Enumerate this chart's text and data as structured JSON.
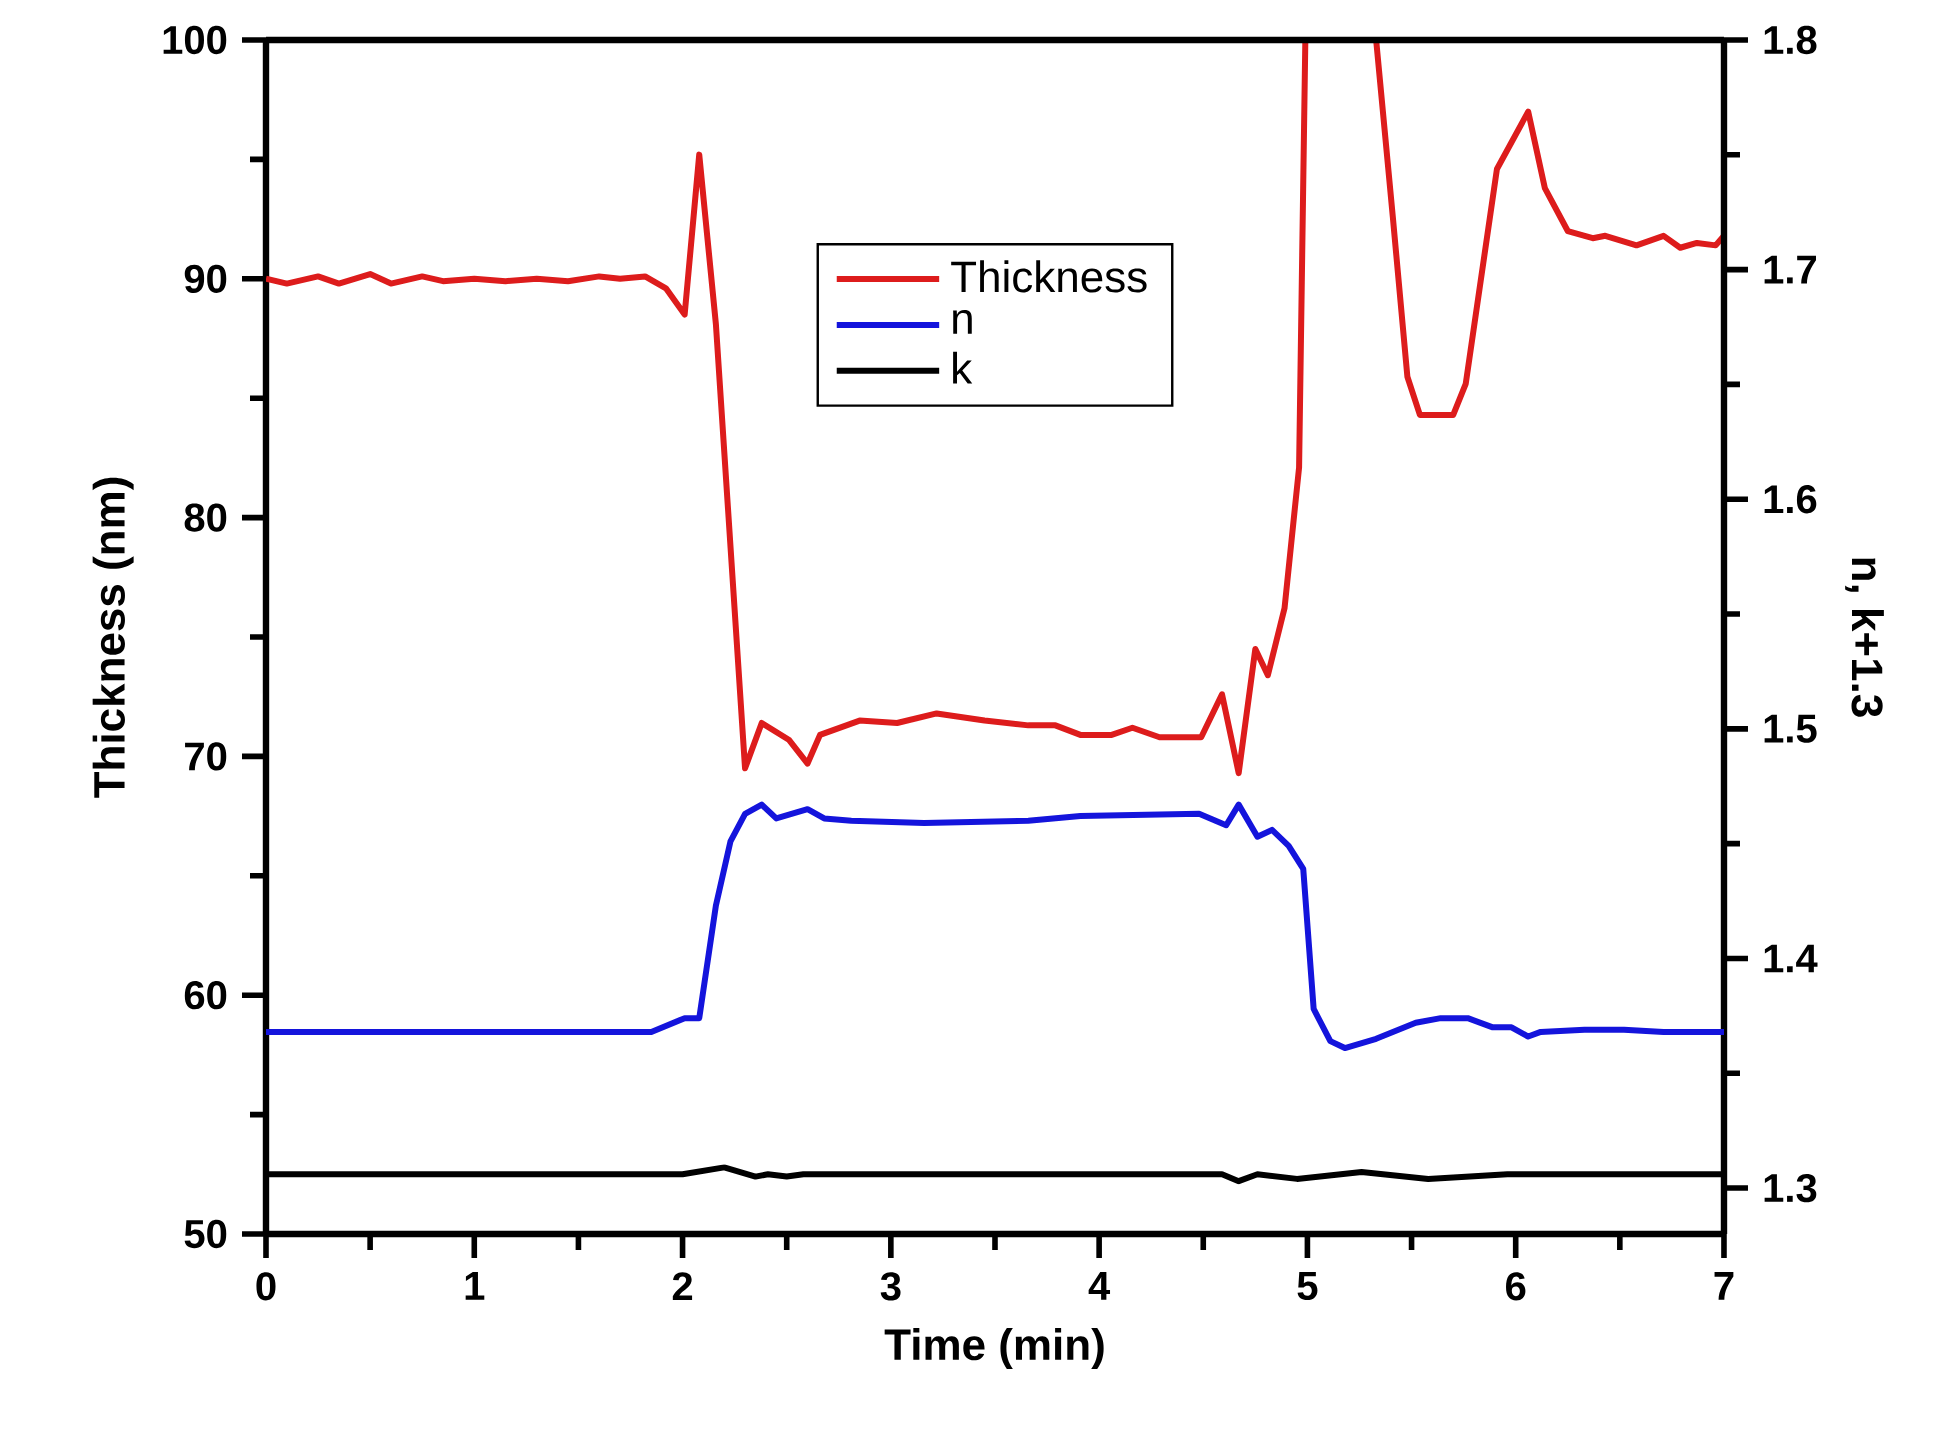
{
  "chart_data": {
    "type": "line",
    "xlabel": "Time (min)",
    "ylabel": "Thickness (nm)",
    "y2label": "n, k+1.3",
    "xlim": [
      0,
      7
    ],
    "xticks": [
      0,
      1,
      2,
      3,
      4,
      5,
      6,
      7
    ],
    "ylim": [
      50,
      100
    ],
    "yticks": [
      50,
      60,
      70,
      80,
      90,
      100
    ],
    "y2lim": [
      1.28,
      1.8
    ],
    "y2ticks": [
      1.3,
      1.4,
      1.5,
      1.6,
      1.7,
      1.8
    ],
    "legend": "top",
    "series": [
      {
        "name": "Thickness",
        "color": "#dd1c1c",
        "axis": "y",
        "x": [
          0,
          0.1,
          0.25,
          0.35,
          0.5,
          0.6,
          0.75,
          0.85,
          1.0,
          1.15,
          1.3,
          1.45,
          1.6,
          1.7,
          1.82,
          1.92,
          2.01,
          2.08,
          2.16,
          2.3,
          2.38,
          2.51,
          2.6,
          2.66,
          2.85,
          3.03,
          3.22,
          3.45,
          3.66,
          3.79,
          3.91,
          4.06,
          4.16,
          4.29,
          4.49,
          4.59,
          4.67,
          4.75,
          4.81,
          4.89,
          4.96,
          4.99,
          5.15,
          5.33,
          5.41,
          5.48,
          5.54,
          5.7,
          5.76,
          5.91,
          6.06,
          6.14,
          6.25,
          6.37,
          6.43,
          6.58,
          6.71,
          6.79,
          6.87,
          6.96,
          7.0
        ],
        "values": [
          90.0,
          89.8,
          90.1,
          89.8,
          90.2,
          89.8,
          90.1,
          89.9,
          90.0,
          89.9,
          90.0,
          89.9,
          90.1,
          90.0,
          90.1,
          89.6,
          88.5,
          95.2,
          88.1,
          69.5,
          71.4,
          70.7,
          69.7,
          70.9,
          71.5,
          71.4,
          71.8,
          71.5,
          71.3,
          71.3,
          70.9,
          70.9,
          71.2,
          70.8,
          70.8,
          72.6,
          69.3,
          74.5,
          73.4,
          76.2,
          82.1,
          100,
          null,
          100,
          92.6,
          85.9,
          84.3,
          84.3,
          85.6,
          94.6,
          97.0,
          93.8,
          92.0,
          91.7,
          91.8,
          91.4,
          91.8,
          91.3,
          91.5,
          91.4,
          91.8
        ]
      },
      {
        "name": "n",
        "color": "#1414dc",
        "axis": "y2",
        "x": [
          0,
          1.85,
          2.01,
          2.08,
          2.16,
          2.23,
          2.3,
          2.38,
          2.45,
          2.6,
          2.68,
          2.81,
          3.16,
          3.66,
          3.91,
          4.48,
          4.61,
          4.67,
          4.76,
          4.83,
          4.91,
          4.98,
          5.03,
          5.11,
          5.18,
          5.33,
          5.52,
          5.64,
          5.77,
          5.89,
          5.98,
          6.06,
          6.12,
          6.33,
          6.52,
          6.71,
          7.0
        ],
        "values": [
          1.368,
          1.368,
          1.374,
          1.374,
          1.423,
          1.451,
          1.463,
          1.467,
          1.461,
          1.465,
          1.461,
          1.46,
          1.459,
          1.46,
          1.462,
          1.463,
          1.458,
          1.467,
          1.453,
          1.456,
          1.449,
          1.439,
          1.378,
          1.364,
          1.361,
          1.365,
          1.372,
          1.374,
          1.374,
          1.37,
          1.37,
          1.366,
          1.368,
          1.369,
          1.369,
          1.368,
          1.368
        ]
      },
      {
        "name": "k",
        "color": "#000000",
        "axis": "y2",
        "x": [
          0,
          2.0,
          2.2,
          2.35,
          2.41,
          2.5,
          2.58,
          4.59,
          4.67,
          4.76,
          4.95,
          5.26,
          5.58,
          5.96,
          7.0
        ],
        "values": [
          1.306,
          1.306,
          1.309,
          1.305,
          1.306,
          1.305,
          1.306,
          1.306,
          1.303,
          1.306,
          1.304,
          1.307,
          1.304,
          1.306,
          1.306
        ]
      }
    ]
  }
}
